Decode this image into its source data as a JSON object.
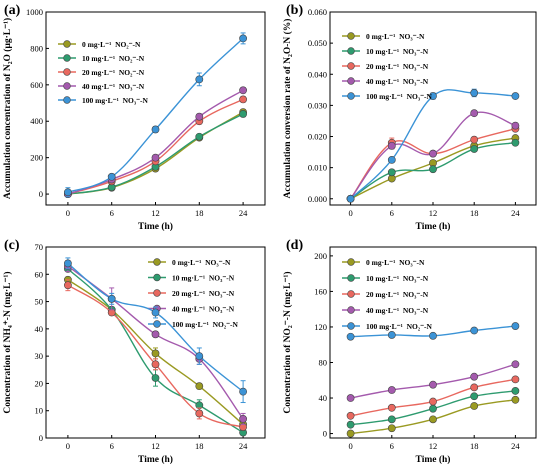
{
  "chart_data": [
    {
      "type": "line",
      "panel_label": "(a)",
      "xlabel": "Time (h)",
      "ylabel": "Accumulation concentration of N₂O (μg·L⁻¹)",
      "x": [
        0,
        6,
        12,
        18,
        24
      ],
      "xticks": [
        "0",
        "6",
        "12",
        "18",
        "24"
      ],
      "ylim": [
        -60,
        1000
      ],
      "yticks": [
        "0",
        "200",
        "400",
        "600",
        "800",
        "1000"
      ],
      "legend_position": "top-left",
      "series": [
        {
          "name": "0 mg·L⁻¹  NO₂⁻-N",
          "color": "#9a9a22",
          "values": [
            0,
            35,
            140,
            310,
            450
          ],
          "err": [
            5,
            5,
            10,
            10,
            15
          ]
        },
        {
          "name": "10 mg·L⁻¹  NO₂⁻-N",
          "color": "#2e9b6f",
          "values": [
            0,
            38,
            150,
            315,
            440
          ],
          "err": [
            5,
            5,
            10,
            10,
            15
          ]
        },
        {
          "name": "20 mg·L⁻¹  NO₂⁻-N",
          "color": "#e8685f",
          "values": [
            0,
            70,
            180,
            400,
            520
          ],
          "err": [
            5,
            8,
            10,
            15,
            15
          ]
        },
        {
          "name": "40 mg·L⁻¹  NO₃⁻-N",
          "color": "#a45aad",
          "values": [
            0,
            80,
            200,
            425,
            570
          ],
          "err": [
            5,
            8,
            10,
            15,
            15
          ]
        },
        {
          "name": "100 mg·L⁻¹  NO₃⁻-N",
          "color": "#3b93d6",
          "values": [
            10,
            95,
            355,
            630,
            855
          ],
          "err": [
            25,
            10,
            15,
            35,
            30
          ]
        }
      ]
    },
    {
      "type": "line",
      "panel_label": "(b)",
      "xlabel": "Time (h)",
      "ylabel": "Accumulation conversion rate of N₂O-N (%)",
      "x": [
        0,
        6,
        12,
        18,
        24
      ],
      "xticks": [
        "0",
        "6",
        "12",
        "18",
        "24"
      ],
      "ylim": [
        -0.002,
        0.06
      ],
      "yticks": [
        "0.000",
        "0.010",
        "0.020",
        "0.030",
        "0.040",
        "0.050",
        "0.060"
      ],
      "legend_position": "top-left",
      "series": [
        {
          "name": "0 mg·L⁻¹  NO₃⁻-N",
          "color": "#9a9a22",
          "values": [
            0,
            0.0065,
            0.0115,
            0.017,
            0.0195
          ],
          "err": [
            0.0005,
            0.0005,
            0.0005,
            0.0006,
            0.0006
          ]
        },
        {
          "name": "10 mg·L⁻¹  NO₃⁻-N",
          "color": "#2e9b6f",
          "values": [
            0,
            0.0085,
            0.0095,
            0.016,
            0.018
          ],
          "err": [
            0.0005,
            0.0005,
            0.0005,
            0.0006,
            0.0006
          ]
        },
        {
          "name": "20 mg·L⁻¹  NO₃⁻-N",
          "color": "#e8685f",
          "values": [
            0,
            0.018,
            0.0145,
            0.019,
            0.0225
          ],
          "err": [
            0.0005,
            0.0015,
            0.0006,
            0.0006,
            0.0007
          ]
        },
        {
          "name": "40 mg·L⁻¹  NO₃⁻-N",
          "color": "#a45aad",
          "values": [
            0,
            0.017,
            0.0145,
            0.0275,
            0.0235
          ],
          "err": [
            0.0005,
            0.001,
            0.0006,
            0.0006,
            0.0008
          ]
        },
        {
          "name": "100 mg·L⁻¹  NO₃⁻-N",
          "color": "#3b93d6",
          "values": [
            0,
            0.0125,
            0.033,
            0.034,
            0.033
          ],
          "err": [
            0.0005,
            0.0008,
            0.001,
            0.0012,
            0.0006
          ]
        }
      ]
    },
    {
      "type": "line",
      "panel_label": "(c)",
      "xlabel": "Time (h)",
      "ylabel": "Concentration of NH₄⁺-N (mg·L⁻¹)",
      "x": [
        0,
        6,
        12,
        18,
        24
      ],
      "xticks": [
        "0",
        "6",
        "12",
        "18",
        "24"
      ],
      "ylim": [
        0,
        70
      ],
      "yticks": [
        "0",
        "10",
        "20",
        "30",
        "40",
        "50",
        "60",
        "70"
      ],
      "legend_position": "top-right",
      "series": [
        {
          "name": "0 mg·L⁻¹  NO₃⁻-N",
          "color": "#9a9a22",
          "values": [
            58,
            47,
            31,
            19,
            5
          ],
          "err": [
            1,
            1,
            2,
            1,
            1
          ]
        },
        {
          "name": "10 mg·L⁻¹  NO₃⁻-N",
          "color": "#2e9b6f",
          "values": [
            62,
            47,
            22,
            12,
            2
          ],
          "err": [
            1,
            1,
            3,
            2,
            1
          ]
        },
        {
          "name": "20 mg·L⁻¹  NO₃⁻-N",
          "color": "#e8685f",
          "values": [
            56,
            46,
            27,
            9,
            4
          ],
          "err": [
            2,
            1,
            2,
            2,
            1
          ]
        },
        {
          "name": "40 mg·L⁻¹  NO₃⁻-N",
          "color": "#a45aad",
          "values": [
            63,
            51,
            38,
            29,
            7
          ],
          "err": [
            2,
            4,
            1,
            2,
            2
          ]
        },
        {
          "name": "100 mg·L⁻¹  NO₂⁻-N",
          "color": "#3b93d6",
          "values": [
            64,
            51,
            46,
            30,
            17
          ],
          "err": [
            2,
            2,
            2,
            3,
            4
          ]
        }
      ]
    },
    {
      "type": "line",
      "panel_label": "(d)",
      "xlabel": "Time (h)",
      "ylabel": "Concentration of NO₂⁻-N (mg·L⁻¹)",
      "x": [
        0,
        6,
        12,
        18,
        24
      ],
      "xticks": [
        "0",
        "6",
        "12",
        "18",
        "24"
      ],
      "ylim": [
        -5,
        210
      ],
      "yticks": [
        "0",
        "40",
        "80",
        "120",
        "160",
        "200"
      ],
      "legend_position": "top-left",
      "series": [
        {
          "name": "0 mg·L⁻¹  NO₃⁻-N",
          "color": "#9a9a22",
          "values": [
            0,
            6,
            16,
            31,
            38
          ],
          "err": [
            1,
            1,
            1,
            1,
            1
          ]
        },
        {
          "name": "10 mg·L⁻¹  NO₃⁻-N",
          "color": "#2e9b6f",
          "values": [
            10,
            16,
            28,
            42,
            48
          ],
          "err": [
            1,
            1,
            1,
            1,
            1
          ]
        },
        {
          "name": "20 mg·L⁻¹  NO₃⁻-N",
          "color": "#e8685f",
          "values": [
            20,
            29,
            36,
            52,
            61
          ],
          "err": [
            1,
            1,
            1,
            1,
            1
          ]
        },
        {
          "name": "40 mg·L⁻¹  NO₃⁻-N",
          "color": "#a45aad",
          "values": [
            40,
            49,
            55,
            64,
            78
          ],
          "err": [
            1,
            1,
            1,
            1,
            2
          ]
        },
        {
          "name": "100 mg·L⁻¹  NO₂⁻-N",
          "color": "#3b93d6",
          "values": [
            109,
            111,
            110,
            116,
            121
          ],
          "err": [
            1,
            1,
            1,
            1,
            1
          ]
        }
      ]
    }
  ]
}
